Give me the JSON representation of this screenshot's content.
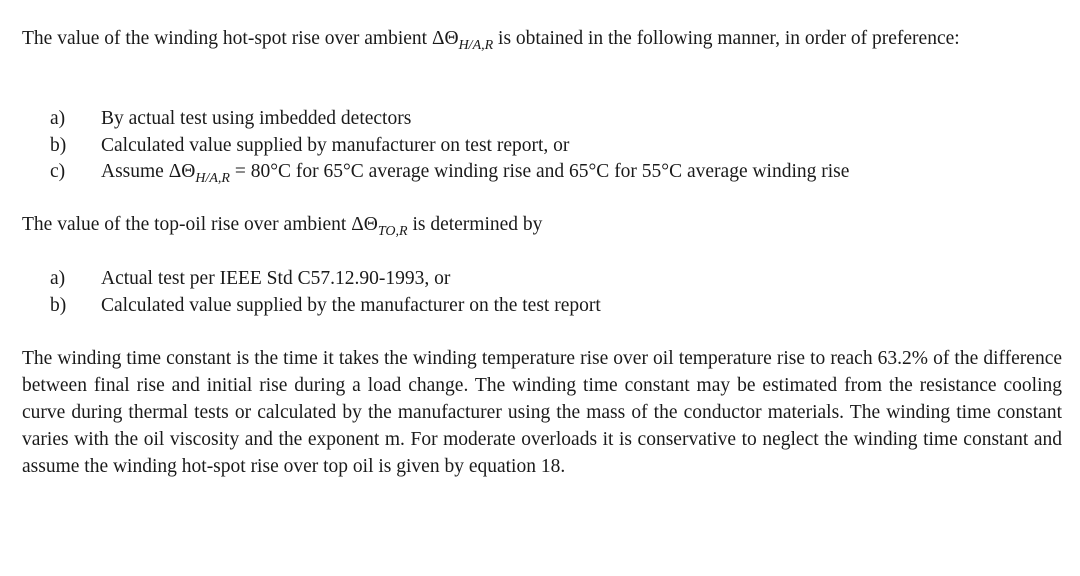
{
  "para1": {
    "pre": "The value of the winding hot-spot rise over ambient ΔΘ",
    "sub": "H/A,R",
    "post": " is obtained in the following manner, in order of preference:"
  },
  "list1": [
    {
      "marker": "a)",
      "text": "By actual test using imbedded detectors"
    },
    {
      "marker": "b)",
      "text": "Calculated value supplied by manufacturer on test report, or"
    },
    {
      "marker": "c)",
      "pre": "Assume ΔΘ",
      "sub": "H/A,R",
      "post": " = 80°C for 65°C average winding rise and 65°C for 55°C average winding rise"
    }
  ],
  "para2": {
    "pre": "The value of the top-oil rise over ambient ΔΘ",
    "sub": "TO,R",
    "post": " is determined by"
  },
  "list2": [
    {
      "marker": "a)",
      "text": "Actual test per IEEE Std C57.12.90-1993, or"
    },
    {
      "marker": "b)",
      "text": "Calculated value supplied by the manufacturer on the test report"
    }
  ],
  "para3": "The winding time constant is the time it takes the winding temperature rise over oil temperature rise to reach 63.2% of the difference between final rise and initial rise during a load change. The winding time constant may be estimated from the resistance cooling curve during thermal tests or calculated by the manufacturer using the mass of the conductor materials. The winding time constant varies with the oil viscosity and the exponent m. For moderate overloads it is conservative to neglect the winding time constant and assume the winding hot-spot rise over top oil is given by equation 18."
}
